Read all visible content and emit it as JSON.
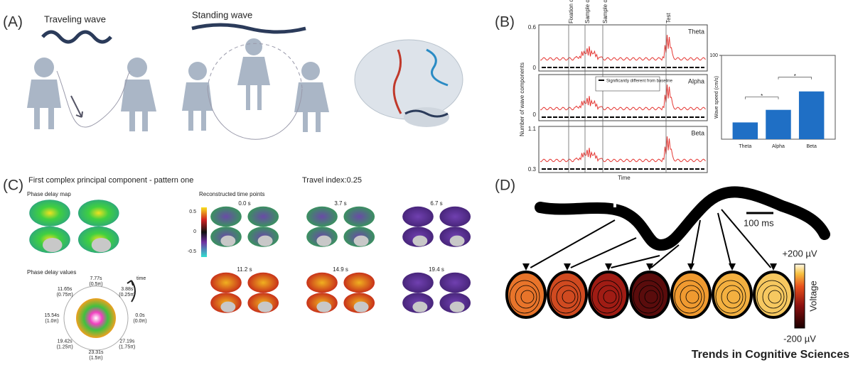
{
  "panel_a": {
    "label": "(A)",
    "traveling": "Traveling wave",
    "standing": "Standing wave"
  },
  "panel_b": {
    "label": "(B)",
    "events": [
      "Fixation on",
      "Sample on",
      "Sample off",
      "Test"
    ],
    "bands": [
      "Theta",
      "Alpha",
      "Beta"
    ],
    "theta_ticks": [
      0.6,
      0
    ],
    "alpha_ticks": [
      0
    ],
    "beta_ticks": [
      1.1,
      0.3
    ],
    "y_axis": "Number of wave components",
    "x_axis": "Time",
    "legend": "Significantly different from baseline",
    "bar_chart": {
      "type": "bar",
      "y_label": "Wave speed (cm/s)",
      "categories": [
        "Theta",
        "Alpha",
        "Beta"
      ],
      "values": [
        20,
        35,
        57
      ],
      "ylim": [
        0,
        100
      ],
      "yticks": [
        100
      ],
      "color": "#1f6fc5",
      "significance": "*"
    }
  },
  "panel_c": {
    "label": "(C)",
    "title": "First complex principal component - pattern one",
    "travel": "Travel index:0.25",
    "phase_map": "Phase delay map",
    "reconstructed": "Reconstructed time points",
    "colorbar_ticks": [
      0.5,
      0,
      -0.5
    ],
    "time_points": [
      "0.0 s",
      "3.7 s",
      "6.7 s",
      "11.2 s",
      "14.9 s",
      "19.4 s"
    ],
    "phase_values": "Phase delay values",
    "time": "time",
    "wheel": [
      {
        "time": "7.77s",
        "phase": "(0.5π)"
      },
      {
        "time": "3.88s",
        "phase": "(0.25π)"
      },
      {
        "time": "0.0s",
        "phase": "(0.0π)"
      },
      {
        "time": "27.19s",
        "phase": "(1.75π)"
      },
      {
        "time": "23.31s",
        "phase": "(1.5π)"
      },
      {
        "time": "19.42s",
        "phase": "(1.25π)"
      },
      {
        "time": "15.54s",
        "phase": "(1.0π)"
      },
      {
        "time": "11.65s",
        "phase": "(0.75π)"
      }
    ]
  },
  "panel_d": {
    "label": "(D)",
    "scale": "100 ms",
    "colorbar": "Voltage",
    "top": "+200 µV",
    "bottom": "-200 µV"
  },
  "footer": "Trends in Cognitive Sciences"
}
